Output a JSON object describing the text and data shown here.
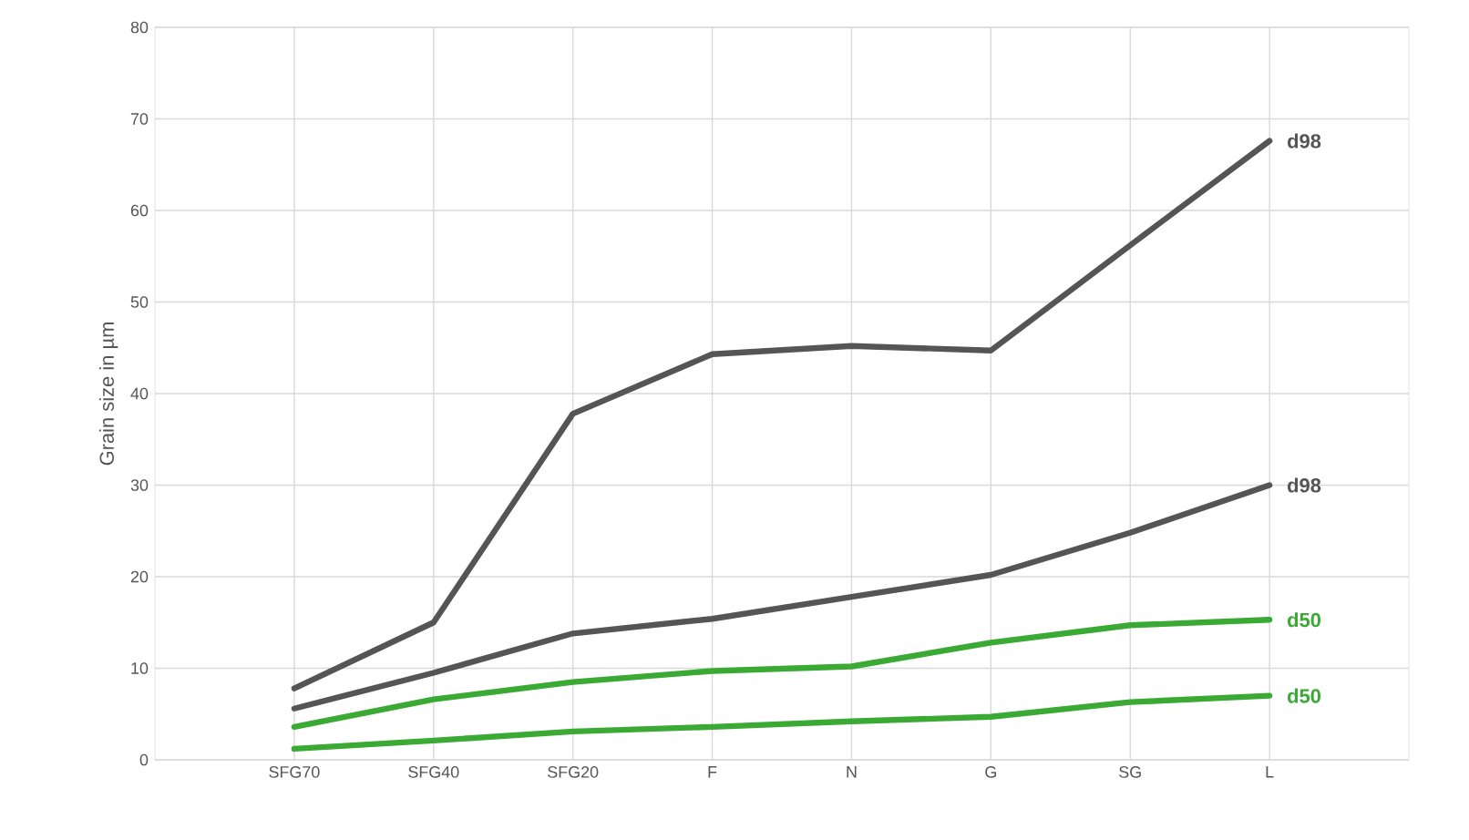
{
  "chart_data": {
    "type": "line",
    "ylabel": "Grain size in µm",
    "categories": [
      "SFG70",
      "SFG40",
      "SFG20",
      "F",
      "N",
      "G",
      "SG",
      "L"
    ],
    "series": [
      {
        "name": "d98",
        "color": "#555555",
        "values": [
          7.8,
          15,
          37.8,
          44.3,
          45.2,
          44.7,
          56.2,
          67.6
        ]
      },
      {
        "name": "d98",
        "color": "#555555",
        "values": [
          5.6,
          9.5,
          13.8,
          15.4,
          17.8,
          20.2,
          24.8,
          30
        ]
      },
      {
        "name": "d50",
        "color": "#3aaa35",
        "values": [
          3.6,
          6.6,
          8.5,
          9.7,
          10.2,
          12.8,
          14.7,
          15.3
        ]
      },
      {
        "name": "d50",
        "color": "#3aaa35",
        "values": [
          1.2,
          2.1,
          3.1,
          3.6,
          4.2,
          4.7,
          6.3,
          7.0
        ]
      }
    ],
    "ylim": [
      0,
      80
    ],
    "yticks": [
      0,
      10,
      20,
      30,
      40,
      50,
      60,
      70,
      80
    ],
    "grid": true,
    "legend": false,
    "marker": "none",
    "line_style": "solid"
  }
}
